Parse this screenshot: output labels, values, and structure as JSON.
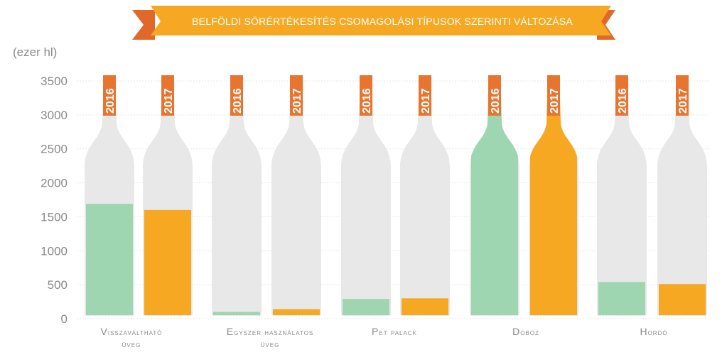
{
  "title": "BELFÖLDI SÖRÉRTÉKESÍTÉS CSOMAGOLÁSI TÍPUSOK SZERINTI VÁLTOZÁSA",
  "unit": "(ezer hl)",
  "colors": {
    "banner": "#f7a823",
    "banner_fold": "#e0692a",
    "bottle": "#e8e8e8",
    "series_2016": "#9dd6b0",
    "series_2017": "#f7a823",
    "label_box": "#e8752f",
    "axis_text": "#8a8a8a",
    "grid": "#e6e6e6"
  },
  "category_labels": [
    {
      "line1": "Visszaváltható",
      "line2": "üveg"
    },
    {
      "line1": "Egyszer használatos",
      "line2": "üveg"
    },
    {
      "line1": "PET Palack",
      "line2": ""
    },
    {
      "line1": "Doboz",
      "line2": ""
    },
    {
      "line1": "Hordó",
      "line2": ""
    }
  ],
  "chart_data": {
    "type": "bar",
    "title": "BELFÖLDI SÖRÉRTÉKESÍTÉS CSOMAGOLÁSI TÍPUSOK SZERINTI VÁLTOZÁSA",
    "ylabel": "(ezer hl)",
    "categories": [
      "Visszaváltható üveg",
      "Egyszer használatos üveg",
      "PET Palack",
      "Doboz",
      "Hordó"
    ],
    "series": [
      {
        "name": "2016",
        "values": [
          1690,
          100,
          290,
          3510,
          540
        ]
      },
      {
        "name": "2017",
        "values": [
          1600,
          140,
          300,
          3510,
          510
        ]
      }
    ],
    "ylim": [
      0,
      3500
    ],
    "yticks": [
      "0",
      "500",
      "1000",
      "1500",
      "2000",
      "2500",
      "3000",
      "3500"
    ],
    "grid": true,
    "legend": "none"
  }
}
